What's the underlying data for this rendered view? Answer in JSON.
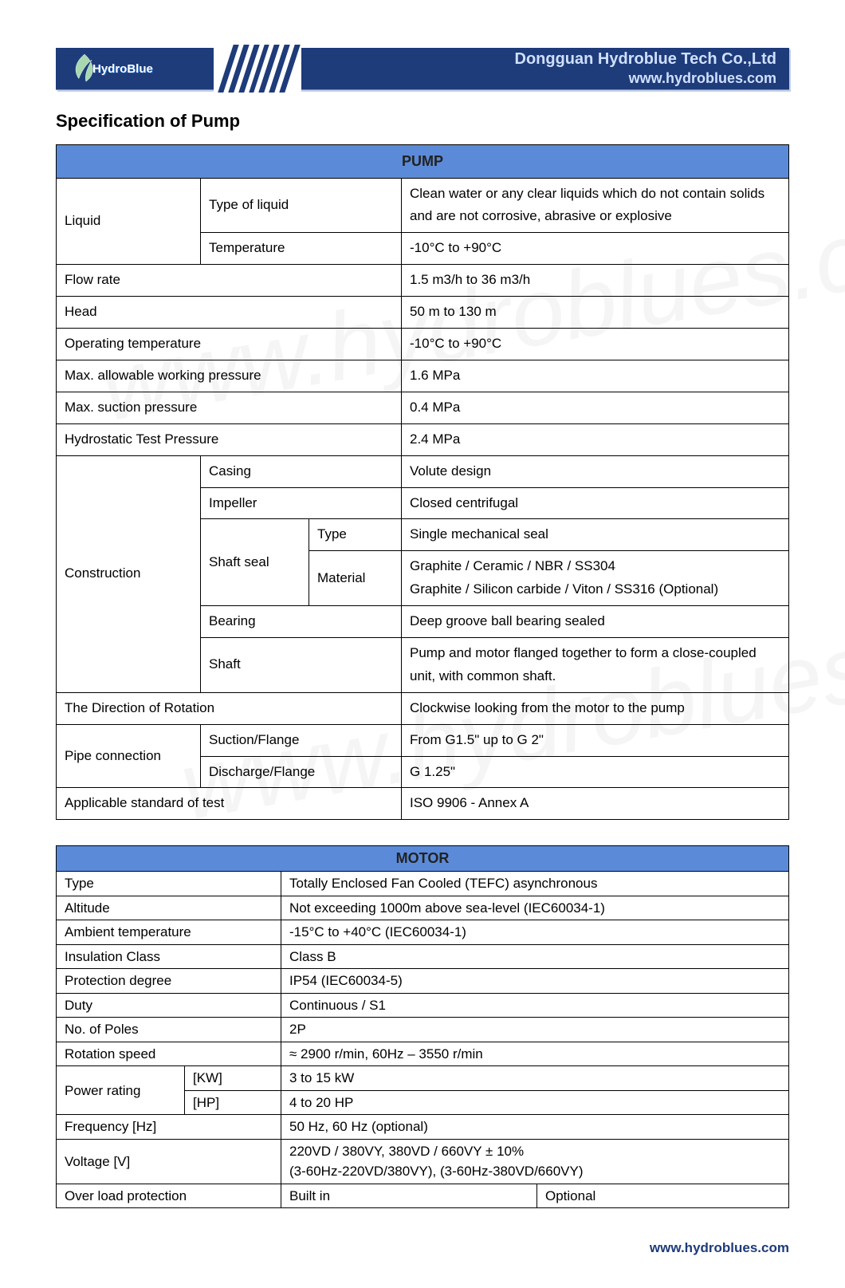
{
  "header": {
    "logo_text": "HydroBlue",
    "company": "Dongguan Hydroblue Tech Co.,Ltd",
    "website": "www.hydroblues.com"
  },
  "title": "Specification of Pump",
  "pump": {
    "head": "PUMP",
    "liquid_label": "Liquid",
    "liquid_type_label": "Type of liquid",
    "liquid_type_value": "Clean water or any clear liquids which do not contain solids and are not corrosive, abrasive or explosive",
    "liquid_temp_label": "Temperature",
    "liquid_temp_value": "-10°C to +90°C",
    "flow_label": "Flow rate",
    "flow_value": "1.5 m3/h to 36 m3/h",
    "head_label": "Head",
    "head_value": "50 m to 130 m",
    "optemp_label": "Operating temperature",
    "optemp_value": "-10°C to +90°C",
    "maxwp_label": "Max. allowable working pressure",
    "maxwp_value": "1.6 MPa",
    "maxsp_label": "Max. suction pressure",
    "maxsp_value": "0.4 MPa",
    "hydro_label": "Hydrostatic Test Pressure",
    "hydro_value": "2.4 MPa",
    "constr_label": "Construction",
    "casing_label": "Casing",
    "casing_value": "Volute design",
    "impeller_label": "Impeller",
    "impeller_value": "Closed centrifugal",
    "shaftseal_label": "Shaft seal",
    "shaftseal_type_label": "Type",
    "shaftseal_type_value": "Single mechanical seal",
    "shaftseal_mat_label": "Material",
    "shaftseal_mat_value": "Graphite / Ceramic / NBR / SS304\nGraphite / Silicon carbide / Viton / SS316 (Optional)",
    "bearing_label": "Bearing",
    "bearing_value": "Deep groove ball bearing sealed",
    "shaft_label": "Shaft",
    "shaft_value": "Pump and motor flanged together to form a close-coupled unit, with common shaft.",
    "rotation_label": "The Direction of Rotation",
    "rotation_value": "Clockwise looking from the motor to the pump",
    "pipe_label": "Pipe connection",
    "pipe_suction_label": "Suction/Flange",
    "pipe_suction_value": "From G1.5\" up to G 2\"",
    "pipe_discharge_label": "Discharge/Flange",
    "pipe_discharge_value": "G 1.25\"",
    "std_label": "Applicable standard of test",
    "std_value": "ISO 9906 - Annex A"
  },
  "motor": {
    "head": "MOTOR",
    "type_label": "Type",
    "type_value": "Totally Enclosed Fan Cooled (TEFC) asynchronous",
    "alt_label": "Altitude",
    "alt_value": "Not exceeding 1000m above sea-level (IEC60034-1)",
    "ambient_label": "Ambient temperature",
    "ambient_value": "-15°C to +40°C (IEC60034-1)",
    "insul_label": "Insulation Class",
    "insul_value": "Class B",
    "prot_label": "Protection degree",
    "prot_value": "IP54 (IEC60034-5)",
    "duty_label": "Duty",
    "duty_value": "Continuous / S1",
    "poles_label": "No. of Poles",
    "poles_value": "2P",
    "speed_label": "Rotation speed",
    "speed_value": "≈ 2900 r/min, 60Hz – 3550 r/min",
    "power_label": "Power rating",
    "power_kw_label": "[KW]",
    "power_kw_value": "3 to 15 kW",
    "power_hp_label": "[HP]",
    "power_hp_value": "4 to 20 HP",
    "freq_label": "Frequency   [Hz]",
    "freq_value": "50 Hz, 60 Hz (optional)",
    "volt_label": "Voltage   [V]",
    "volt_value": "220VD / 380VY, 380VD / 660VY ± 10%\n(3-60Hz-220VD/380VY), (3-60Hz-380VD/660VY)",
    "overload_label": "Over load protection",
    "overload_value1": "Built in",
    "overload_value2": "Optional"
  },
  "footer": {
    "link": "www.hydroblues.com"
  },
  "colors": {
    "header_bg": "#1e3b7a",
    "table_head_bg": "#5b8bd8",
    "border": "#000000"
  }
}
